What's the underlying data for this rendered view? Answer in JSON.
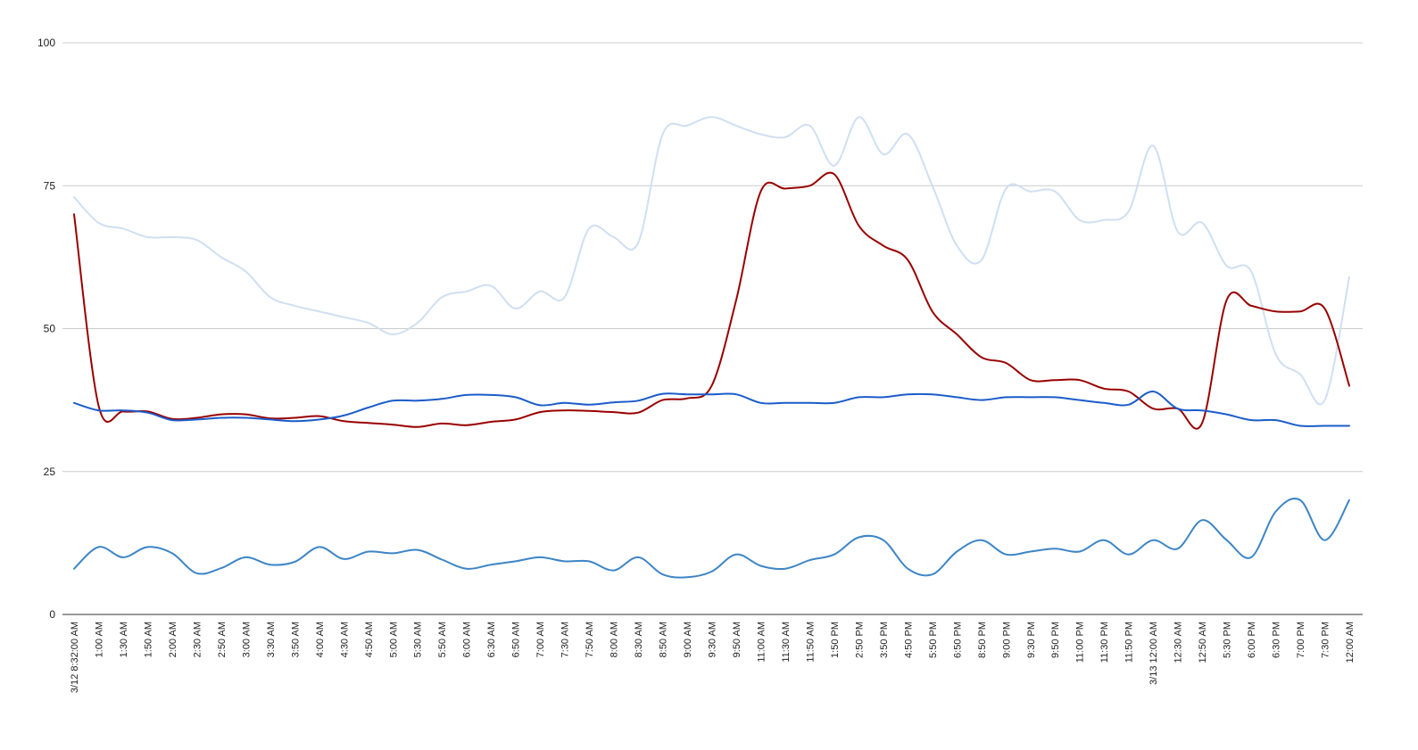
{
  "chart_data": {
    "type": "line",
    "title": "",
    "xlabel": "",
    "ylabel": "",
    "ylim": [
      0,
      100
    ],
    "yticks": [
      0,
      25,
      50,
      75,
      100
    ],
    "grid": true,
    "legend": "none",
    "categories": [
      "3/12 8:32:00 AM",
      "1:00 AM",
      "1:30 AM",
      "1:50 AM",
      "2:00 AM",
      "2:30 AM",
      "2:50 AM",
      "3:00 AM",
      "3:30 AM",
      "3:50 AM",
      "4:00 AM",
      "4:30 AM",
      "4:50 AM",
      "5:00 AM",
      "5:30 AM",
      "5:50 AM",
      "6:00 AM",
      "6:30 AM",
      "6:50 AM",
      "7:00 AM",
      "7:30 AM",
      "7:50 AM",
      "8:00 AM",
      "8:30 AM",
      "8:50 AM",
      "9:00 AM",
      "9:30 AM",
      "9:50 AM",
      "11:00 AM",
      "11:30 AM",
      "11:50 AM",
      "1:50 PM",
      "2:50 PM",
      "3:50 PM",
      "4:50 PM",
      "5:50 PM",
      "6:50 PM",
      "8:50 PM",
      "9:00 PM",
      "9:30 PM",
      "9:50 PM",
      "11:00 PM",
      "11:30 PM",
      "11:50 PM",
      "3/13 12:00 AM",
      "12:30 AM",
      "12:50 AM",
      "5:30 PM",
      "6:00 PM",
      "6:30 PM",
      "7:00 PM",
      "7:30 PM",
      "12:00 AM"
    ],
    "series": [
      {
        "color": "#cfdff2",
        "values": [
          73,
          68.5,
          67.5,
          66,
          66,
          65.5,
          62.5,
          60,
          55.5,
          54,
          53,
          52,
          51,
          49,
          51,
          55.5,
          56.5,
          57.5,
          53.5,
          56.5,
          55.5,
          67.5,
          66,
          65,
          84,
          85.5,
          87,
          85.5,
          84,
          83.5,
          85.5,
          78.5,
          87,
          80.5,
          84,
          75,
          64.5,
          62,
          74.5,
          74,
          74,
          69,
          69,
          70.5,
          82,
          67,
          68.5,
          61,
          60,
          45.5,
          42,
          37.5,
          59
        ]
      },
      {
        "color": "#990000",
        "values": [
          70,
          36.5,
          35.5,
          35.5,
          34.2,
          34.4,
          35,
          35,
          34.3,
          34.4,
          34.7,
          33.8,
          33.5,
          33.2,
          32.8,
          33.4,
          33.1,
          33.7,
          34.1,
          35.4,
          35.7,
          35.6,
          35.4,
          35.3,
          37.5,
          37.8,
          40,
          55,
          74,
          74.5,
          75,
          77,
          68,
          64.5,
          62,
          53,
          49,
          45,
          44,
          41,
          41,
          41,
          39.5,
          39,
          36,
          36,
          33.5,
          55,
          54,
          53,
          53,
          53.5,
          40
        ]
      },
      {
        "color": "#1a5cc9",
        "values": [
          37,
          35.7,
          35.7,
          35.3,
          34,
          34.1,
          34.4,
          34.4,
          34.1,
          33.8,
          34.1,
          34.8,
          36.2,
          37.4,
          37.4,
          37.7,
          38.4,
          38.4,
          38,
          36.6,
          37,
          36.7,
          37.1,
          37.4,
          38.6,
          38.5,
          38.5,
          38.5,
          37,
          37,
          37,
          37,
          38,
          38,
          38.5,
          38.5,
          38,
          37.5,
          38,
          38,
          38,
          37.5,
          37,
          36.7,
          39,
          36,
          35.7,
          35,
          34,
          34,
          33,
          33,
          33
        ]
      },
      {
        "color": "#3d85c6",
        "values": [
          8,
          11.8,
          10,
          11.8,
          10.7,
          7.2,
          8.1,
          10,
          8.7,
          9.2,
          11.8,
          9.7,
          11,
          10.7,
          11.3,
          9.6,
          8,
          8.7,
          9.3,
          10,
          9.3,
          9.3,
          7.7,
          10,
          7,
          6.5,
          7.5,
          10.5,
          8.5,
          8,
          9.5,
          10.5,
          13.5,
          13,
          8,
          7,
          11,
          13,
          10.5,
          11,
          11.5,
          11,
          13,
          10.5,
          13,
          11.5,
          16.5,
          13,
          10,
          18,
          20,
          13,
          20
        ]
      }
    ]
  }
}
